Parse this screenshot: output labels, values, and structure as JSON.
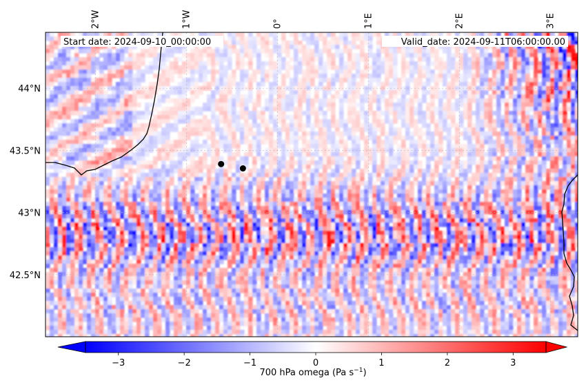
{
  "map": {
    "start_date_label": "Start date: 2024-09-10_00:00:00",
    "valid_date_label": "Valid_date: 2024-09-11T06:00:00.00",
    "field": "700 hPa omega",
    "colormap": "bwr",
    "colors": {
      "negative": "#0000ff",
      "zero": "#ffffff",
      "positive": "#ff0000",
      "coastline": "#000000",
      "marker": "#000000"
    },
    "extent": {
      "lon_min": -2.55,
      "lon_max": 3.3,
      "lat_min": 42.0,
      "lat_max": 44.45
    },
    "lon_ticks": [
      {
        "value": -2,
        "label": "2°W"
      },
      {
        "value": -1,
        "label": "1°W"
      },
      {
        "value": 0,
        "label": "0°"
      },
      {
        "value": 1,
        "label": "1°E"
      },
      {
        "value": 2,
        "label": "2°E"
      },
      {
        "value": 3,
        "label": "3°E"
      }
    ],
    "lat_ticks": [
      {
        "value": 44.0,
        "label": "44°N"
      },
      {
        "value": 43.5,
        "label": "43.5°N"
      },
      {
        "value": 43.0,
        "label": "43°N"
      },
      {
        "value": 42.5,
        "label": "42.5°N"
      }
    ],
    "markers": [
      {
        "lon": -0.62,
        "lat": 43.39
      },
      {
        "lon": -0.38,
        "lat": 43.355
      }
    ]
  },
  "colorbar": {
    "label_prefix": "700 hPa omega (Pa s",
    "label_exponent": "−1",
    "label_suffix": ")",
    "range": [
      -3.5,
      3.5
    ],
    "extend": "both",
    "ticks": [
      {
        "value": -3,
        "label": "−3"
      },
      {
        "value": -2,
        "label": "−2"
      },
      {
        "value": -1,
        "label": "−1"
      },
      {
        "value": 0,
        "label": "0"
      },
      {
        "value": 1,
        "label": "1"
      },
      {
        "value": 2,
        "label": "2"
      },
      {
        "value": 3,
        "label": "3"
      }
    ]
  }
}
